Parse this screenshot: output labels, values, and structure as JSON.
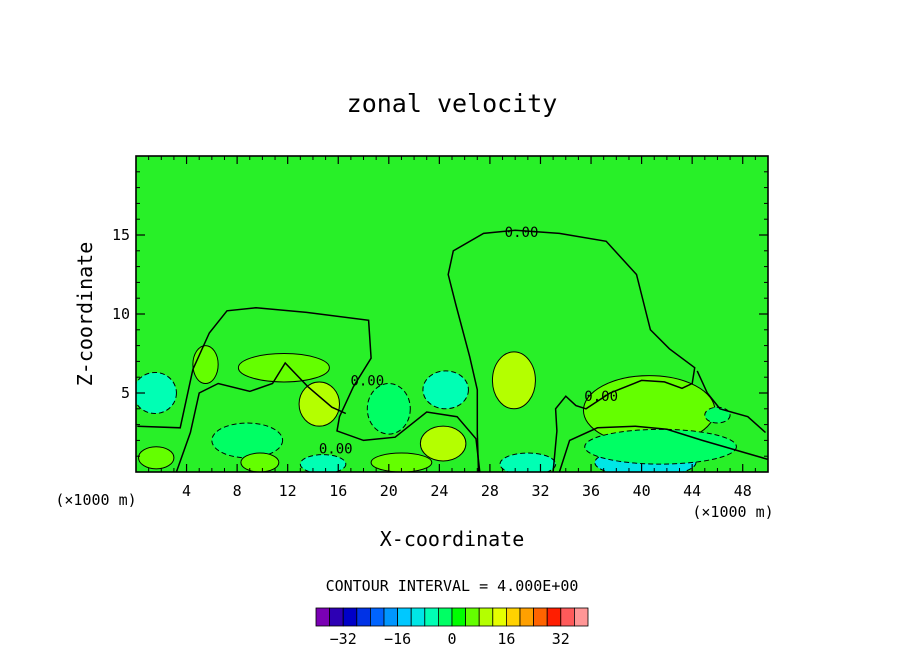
{
  "chart_data": {
    "type": "heatmap",
    "title": "zonal velocity",
    "xlabel": "X-coordinate",
    "ylabel": "Z-coordinate",
    "x_unit_left": "(×1000 m)",
    "x_unit_right": "(×1000 m)",
    "xlim": [
      0,
      50
    ],
    "ylim": [
      0,
      20
    ],
    "x_ticks": [
      4,
      8,
      12,
      16,
      20,
      24,
      28,
      32,
      36,
      40,
      44,
      48
    ],
    "y_ticks": [
      5,
      10,
      15
    ],
    "contour_interval_text": "CONTOUR INTERVAL = 4.000E+00",
    "contour_labels": [
      {
        "text": "0.00",
        "x": 30.5,
        "y": 15.2
      },
      {
        "text": "0.00",
        "x": 18.3,
        "y": 5.8
      },
      {
        "text": "0.00",
        "x": 36.8,
        "y": 4.8
      },
      {
        "text": "0.00",
        "x": 15.8,
        "y": 1.5
      }
    ],
    "colorbar": {
      "levels": [
        -36,
        -32,
        -28,
        -24,
        -20,
        -16,
        -12,
        -8,
        -4,
        0,
        4,
        8,
        12,
        16,
        20,
        24,
        28,
        32,
        36
      ],
      "tick_labels": [
        "-32",
        "-16",
        "0",
        "16",
        "32"
      ],
      "tick_values": [
        -32,
        -16,
        0,
        16,
        32
      ],
      "colors": [
        "#7a00b4",
        "#2d00b4",
        "#0000c8",
        "#0032e6",
        "#0064ff",
        "#0096ff",
        "#00c8ff",
        "#00e6e6",
        "#00ffb4",
        "#00ff64",
        "#00ff00",
        "#64ff00",
        "#b4ff00",
        "#e6ff00",
        "#ffd200",
        "#ffa000",
        "#ff6400",
        "#ff1e00",
        "#ff5a5a",
        "#ff9696"
      ]
    },
    "background_color": "#28f028",
    "features": [
      {
        "kind": "neg",
        "level": -8,
        "x": 1.5,
        "y": 5.0,
        "rx": 1.7,
        "ry": 1.3
      },
      {
        "kind": "pos",
        "level": 4,
        "x": 1.6,
        "y": 0.9,
        "rx": 1.4,
        "ry": 0.7
      },
      {
        "kind": "pos",
        "level": 4,
        "x": 5.5,
        "y": 6.8,
        "rx": 1.0,
        "ry": 1.2
      },
      {
        "kind": "pos",
        "level": 4,
        "x": 11.7,
        "y": 6.6,
        "rx": 3.6,
        "ry": 0.9
      },
      {
        "kind": "pos",
        "level": 8,
        "x": 14.5,
        "y": 4.3,
        "rx": 1.6,
        "ry": 1.4
      },
      {
        "kind": "neg",
        "level": -4,
        "x": 8.8,
        "y": 2.0,
        "rx": 2.8,
        "ry": 1.1
      },
      {
        "kind": "neg",
        "level": -8,
        "x": 24.5,
        "y": 5.2,
        "rx": 1.8,
        "ry": 1.2
      },
      {
        "kind": "neg",
        "level": -4,
        "x": 20.0,
        "y": 4.0,
        "rx": 1.7,
        "ry": 1.6
      },
      {
        "kind": "pos",
        "level": 8,
        "x": 29.9,
        "y": 5.8,
        "rx": 1.7,
        "ry": 1.8
      },
      {
        "kind": "pos",
        "level": 8,
        "x": 24.3,
        "y": 1.8,
        "rx": 1.8,
        "ry": 1.1
      },
      {
        "kind": "pos",
        "level": 4,
        "x": 21.0,
        "y": 0.6,
        "rx": 2.4,
        "ry": 0.6
      },
      {
        "kind": "pos",
        "level": 4,
        "x": 9.8,
        "y": 0.6,
        "rx": 1.5,
        "ry": 0.6
      },
      {
        "kind": "neg",
        "level": -8,
        "x": 14.8,
        "y": 0.5,
        "rx": 1.8,
        "ry": 0.6
      },
      {
        "kind": "pos",
        "level": 8,
        "x": 40.8,
        "y": 4.5,
        "rx": 2.8,
        "ry": 1.5
      },
      {
        "kind": "pos",
        "level": 4,
        "x": 40.6,
        "y": 3.9,
        "rx": 5.2,
        "ry": 2.2
      },
      {
        "kind": "neg",
        "level": -8,
        "x": 31.0,
        "y": 0.5,
        "rx": 2.2,
        "ry": 0.7
      },
      {
        "kind": "neg",
        "level": -12,
        "x": 40.3,
        "y": 0.6,
        "rx": 4.0,
        "ry": 0.9
      },
      {
        "kind": "neg",
        "level": -4,
        "x": 41.5,
        "y": 1.6,
        "rx": 6.0,
        "ry": 1.1
      },
      {
        "kind": "neg",
        "level": -4,
        "x": 46.0,
        "y": 3.6,
        "rx": 1.0,
        "ry": 0.5
      }
    ]
  }
}
